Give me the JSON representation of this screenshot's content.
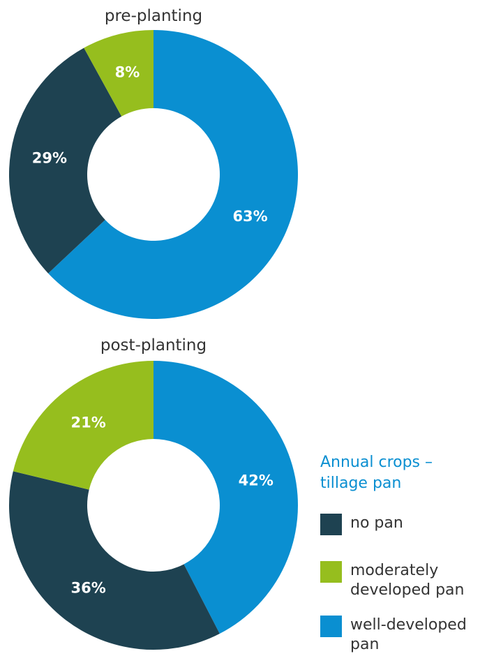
{
  "chart_data": [
    {
      "type": "pie",
      "title": "pre-planting",
      "categories": [
        "well-developed pan",
        "no pan",
        "moderately developed pan"
      ],
      "values": [
        63,
        29,
        8
      ],
      "labels": [
        "63%",
        "29%",
        "8%"
      ],
      "colors": [
        "#0a8fd1",
        "#1e4251",
        "#96be1e"
      ]
    },
    {
      "type": "pie",
      "title": "post-planting",
      "categories": [
        "well-developed pan",
        "no pan",
        "moderately developed pan"
      ],
      "values": [
        42,
        36,
        21
      ],
      "labels": [
        "42%",
        "36%",
        "21%"
      ],
      "colors": [
        "#0a8fd1",
        "#1e4251",
        "#96be1e"
      ]
    }
  ],
  "legend": {
    "title": "Annual crops – tillage pan",
    "items": [
      {
        "label": "no pan",
        "color": "#1e4251"
      },
      {
        "label": "moderately developed pan",
        "color": "#96be1e"
      },
      {
        "label": "well-developed pan",
        "color": "#0a8fd1"
      }
    ]
  }
}
